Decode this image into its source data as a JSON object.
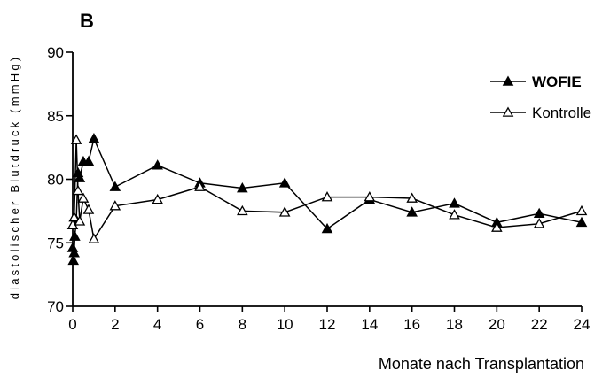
{
  "chart_data": {
    "type": "line",
    "panel_label": "B",
    "title": "",
    "xlabel": "Monate nach Transplantation",
    "ylabel": "diastolischer Blutdruck (mmHg)",
    "xlim": [
      0,
      24
    ],
    "ylim": [
      70,
      90
    ],
    "xticks": [
      0,
      2,
      4,
      6,
      8,
      10,
      12,
      14,
      16,
      18,
      20,
      22,
      24
    ],
    "yticks": [
      70,
      75,
      80,
      85,
      90
    ],
    "grid": false,
    "legend_position": "top-right",
    "series": [
      {
        "name": "WOFIE",
        "marker": "filled-triangle",
        "x": [
          0,
          0.03,
          0.07,
          0.1,
          0.17,
          0.25,
          0.33,
          0.5,
          0.75,
          1,
          2,
          4,
          6,
          8,
          10,
          12,
          14,
          16,
          18,
          20,
          22,
          24
        ],
        "y": [
          74.6,
          73.6,
          74.2,
          75.5,
          76.8,
          80.5,
          80.1,
          81.4,
          81.4,
          83.2,
          79.4,
          81.1,
          79.7,
          79.3,
          79.7,
          76.1,
          78.4,
          77.4,
          78.1,
          76.6,
          77.3,
          76.6
        ]
      },
      {
        "name": "Kontrolle",
        "marker": "open-triangle",
        "x": [
          0,
          0.07,
          0.17,
          0.25,
          0.33,
          0.5,
          0.75,
          1,
          2,
          4,
          6,
          8,
          10,
          12,
          14,
          16,
          18,
          20,
          22,
          24
        ],
        "y": [
          76.4,
          77.0,
          83.1,
          79.1,
          76.7,
          78.5,
          77.6,
          75.3,
          77.9,
          78.4,
          79.4,
          77.5,
          77.4,
          78.6,
          78.6,
          78.5,
          77.2,
          76.2,
          76.5,
          77.5
        ]
      }
    ]
  }
}
